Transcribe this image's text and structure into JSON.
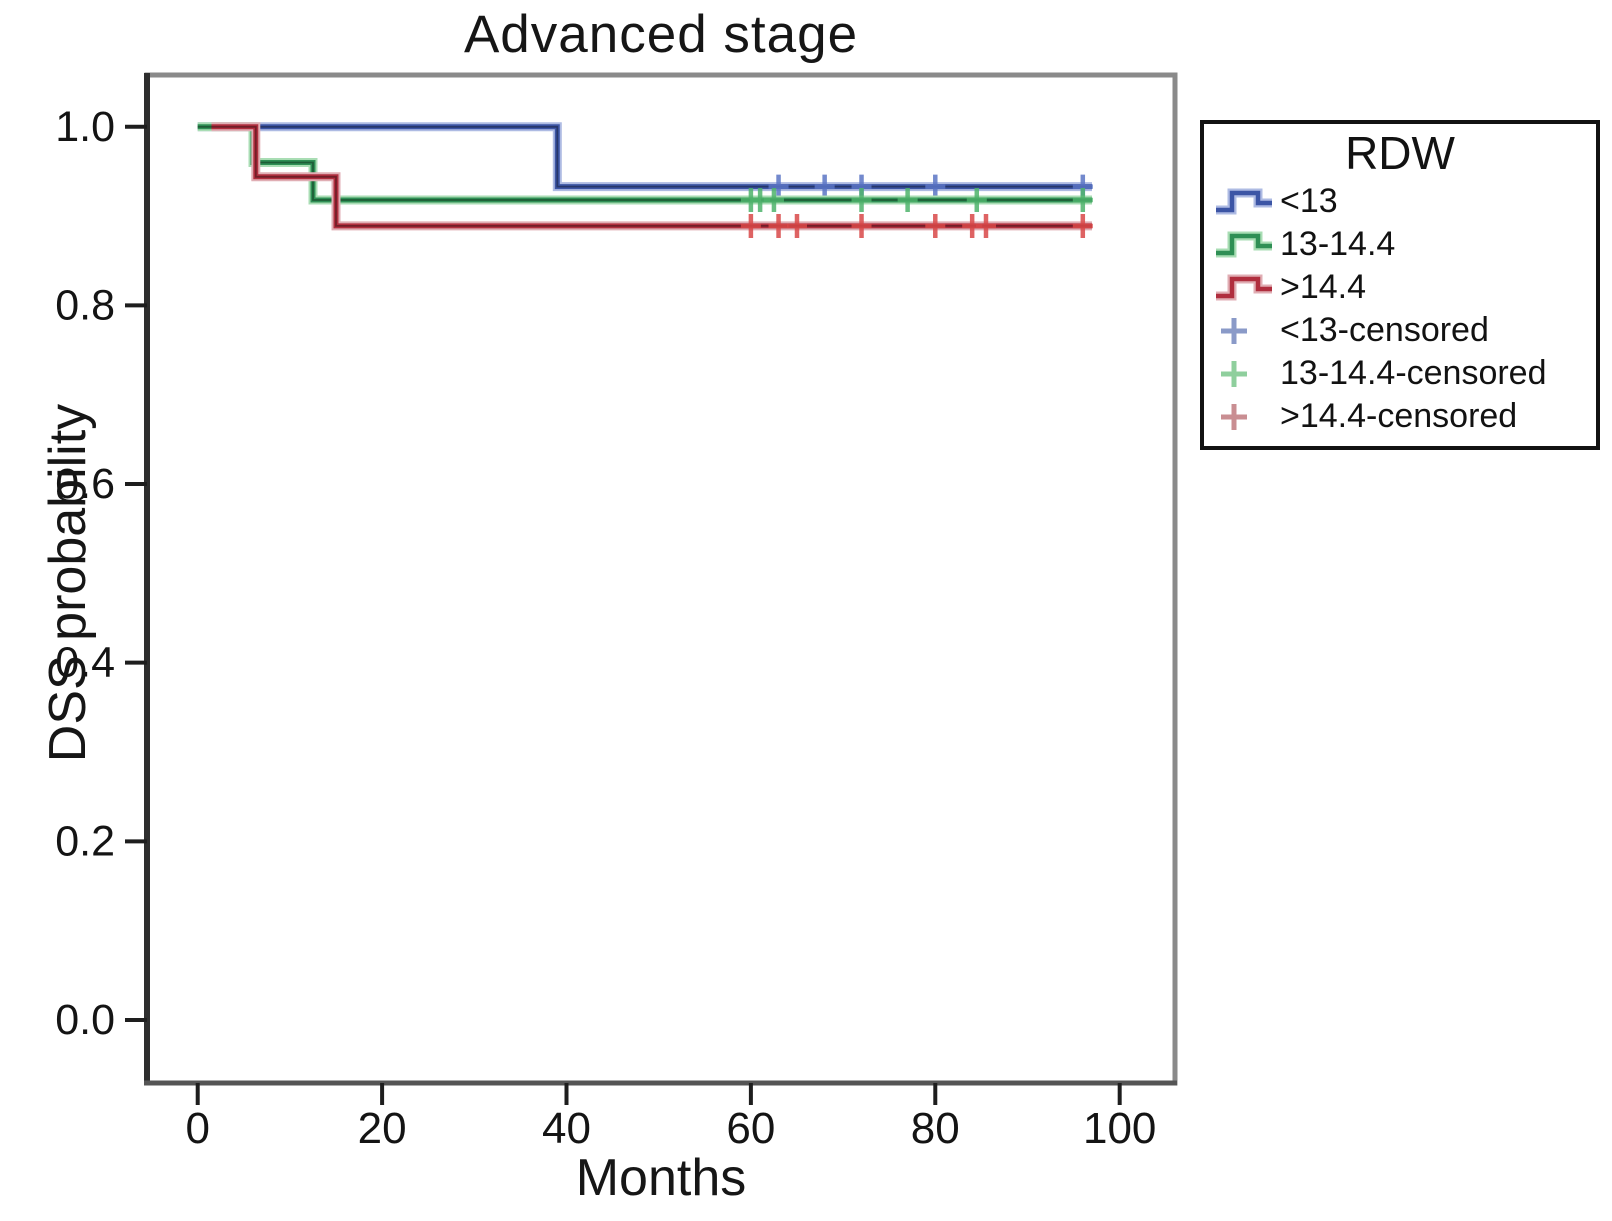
{
  "title": "Advanced stage",
  "axes": {
    "x_label": "Months",
    "y_label": "DSS probability"
  },
  "legend": {
    "title": "RDW",
    "items": [
      {
        "label": "<13",
        "kind": "line",
        "color": "#3c55a5",
        "tint": "#aebbe3"
      },
      {
        "label": "13-14.4",
        "kind": "line",
        "color": "#2f8f55",
        "tint": "#a9ddb4"
      },
      {
        "label": ">14.4",
        "kind": "line",
        "color": "#b02e3e",
        "tint": "#e0aeb4"
      },
      {
        "label": "<13-censored",
        "kind": "censored",
        "color": "#8a9ac8",
        "tint": "#8a9ac8"
      },
      {
        "label": "13-14.4-censored",
        "kind": "censored",
        "color": "#8fcf9d",
        "tint": "#8fcf9d"
      },
      {
        "label": ">14.4-censored",
        "kind": "censored",
        "color": "#c98e92",
        "tint": "#c98e92"
      }
    ]
  },
  "chart_data": {
    "type": "line",
    "subtype": "kaplan-meier-step",
    "title": "Advanced stage",
    "xlabel": "Months",
    "ylabel": "DSS probability",
    "xlim": [
      -5.5,
      106
    ],
    "ylim": [
      -0.0706,
      1.058
    ],
    "grid": false,
    "legend_position": "right-outside",
    "x_ticks": [
      {
        "v": 0,
        "label": "0"
      },
      {
        "v": 20,
        "label": "20"
      },
      {
        "v": 40,
        "label": "40"
      },
      {
        "v": 60,
        "label": "60"
      },
      {
        "v": 80,
        "label": "80"
      },
      {
        "v": 100,
        "label": "100"
      }
    ],
    "y_ticks": [
      {
        "v": 1.0,
        "label": "1.0"
      },
      {
        "v": 0.8,
        "label": "0.8"
      },
      {
        "v": 0.6,
        "label": "0.6"
      },
      {
        "v": 0.4,
        "label": "0.4"
      },
      {
        "v": 0.2,
        "label": "0.2"
      },
      {
        "v": 0.0,
        "label": "0.0"
      }
    ],
    "series": [
      {
        "name": "<13",
        "color": "#3c55a5",
        "tint": "#aebbe3",
        "censor_color": "#5b74c4",
        "points": [
          [
            0,
            1.0
          ],
          [
            39,
            1.0
          ],
          [
            39,
            0.933
          ],
          [
            97,
            0.933
          ]
        ],
        "censored_x": [
          63,
          68,
          72,
          80,
          96
        ],
        "censored_y": 0.933
      },
      {
        "name": "13-14.4",
        "color": "#2f8f55",
        "tint": "#a9ddb4",
        "censor_color": "#4eb36b",
        "points": [
          [
            0,
            1.0
          ],
          [
            6,
            1.0
          ],
          [
            6,
            0.96
          ],
          [
            12.5,
            0.96
          ],
          [
            12.5,
            0.918
          ],
          [
            97,
            0.918
          ]
        ],
        "censored_x": [
          60,
          61,
          62.5,
          72,
          77,
          84.5,
          96
        ],
        "censored_y": 0.918
      },
      {
        "name": ">14.4",
        "color": "#b02e3e",
        "tint": "#e0aeb4",
        "censor_color": "#d84848",
        "points": [
          [
            1.5,
            1.0
          ],
          [
            6.3,
            1.0
          ],
          [
            6.3,
            0.944
          ],
          [
            15,
            0.944
          ],
          [
            15,
            0.889
          ],
          [
            97,
            0.889
          ]
        ],
        "censored_x": [
          60,
          63,
          65,
          72,
          80,
          84,
          85.5,
          96
        ],
        "censored_y": 0.889
      }
    ]
  }
}
